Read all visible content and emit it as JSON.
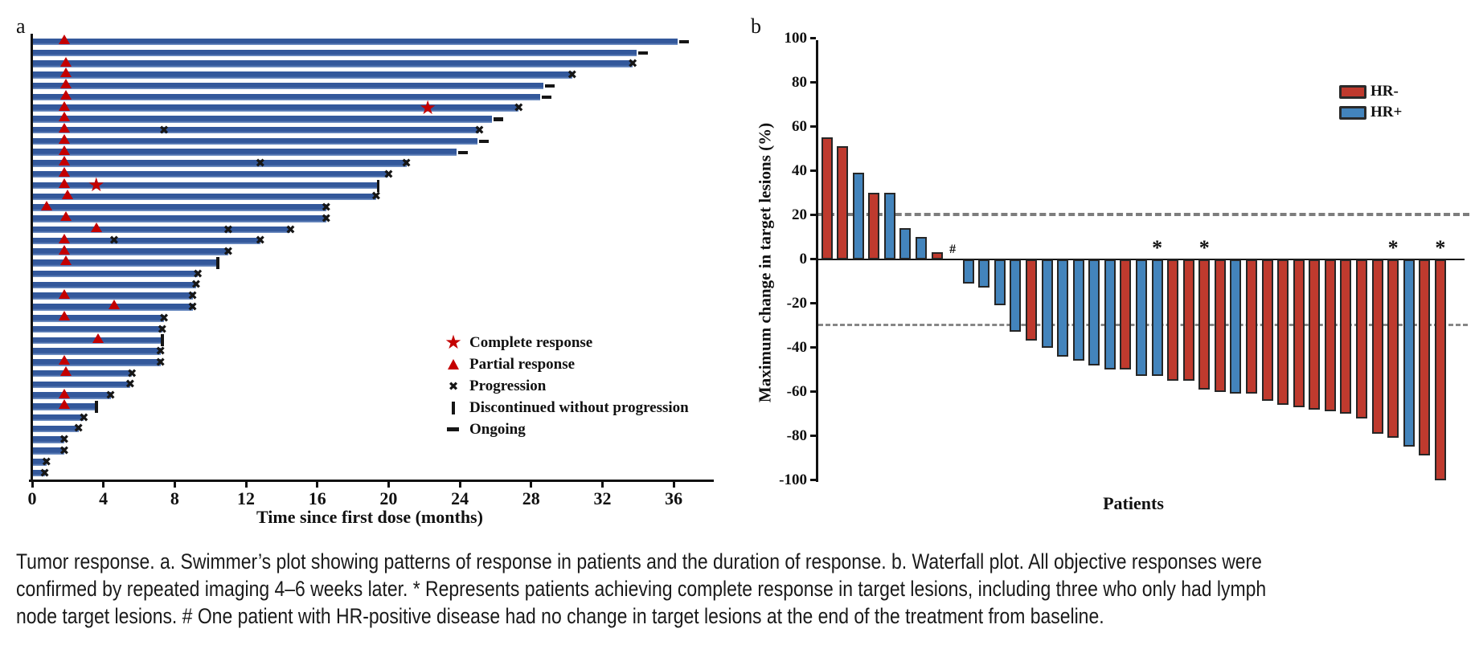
{
  "figure": {
    "panel_a": {
      "label": "a",
      "xlabel": "Time since first dose (months)",
      "x_ticks": [
        0,
        4,
        8,
        12,
        16,
        20,
        24,
        28,
        32,
        36
      ],
      "legend": [
        {
          "symbol": "star",
          "label": "Complete response"
        },
        {
          "symbol": "triangle",
          "label": "Partial response"
        },
        {
          "symbol": "x",
          "label": "Progression"
        },
        {
          "symbol": "vertical-bar",
          "label": "Discontinued without progression"
        },
        {
          "symbol": "dash",
          "label": "Ongoing"
        }
      ]
    },
    "panel_b": {
      "label": "b",
      "ylabel": "Maximum change in target lesions (%)",
      "xlabel": "Patients",
      "y_ticks": [
        100,
        80,
        60,
        40,
        20,
        0,
        -20,
        -40,
        -60,
        -80,
        -100
      ],
      "reference_lines": [
        20,
        -30
      ],
      "legend": [
        {
          "group": "HR-",
          "label": "HR-"
        },
        {
          "group": "HR+",
          "label": "HR+"
        }
      ]
    }
  },
  "chart_data": [
    {
      "type": "bar",
      "name": "swimmer-plot",
      "orientation": "horizontal",
      "xlabel": "Time since first dose (months)",
      "xlim": [
        0,
        38
      ],
      "x_ticks": [
        0,
        4,
        8,
        12,
        16,
        20,
        24,
        28,
        32,
        36
      ],
      "marker_meanings": {
        "star": "Complete response",
        "triangle": "Partial response",
        "x": "Progression",
        "discontinued": "Discontinued without progression",
        "ongoing": "Ongoing"
      },
      "patients": [
        {
          "months": 36.2,
          "end": "ongoing",
          "triangle": 1.8
        },
        {
          "months": 33.9,
          "end": "ongoing"
        },
        {
          "months": 33.7,
          "end": "progression",
          "triangle": 1.9
        },
        {
          "months": 30.3,
          "end": "progression",
          "triangle": 1.9
        },
        {
          "months": 28.7,
          "end": "ongoing",
          "triangle": 1.9
        },
        {
          "months": 28.5,
          "end": "ongoing",
          "triangle": 1.9
        },
        {
          "months": 27.3,
          "end": "progression",
          "triangle": 1.8,
          "star": 22.2
        },
        {
          "months": 25.8,
          "end": "ongoing",
          "triangle": 1.8
        },
        {
          "months": 25.1,
          "end": "progression",
          "triangle": 1.8,
          "x_marks": [
            7.4
          ]
        },
        {
          "months": 25.0,
          "end": "ongoing",
          "triangle": 1.8
        },
        {
          "months": 23.8,
          "end": "ongoing",
          "triangle": 1.8
        },
        {
          "months": 21.0,
          "end": "progression",
          "triangle": 1.8,
          "x_marks": [
            12.8
          ]
        },
        {
          "months": 20.0,
          "end": "progression",
          "triangle": 1.8
        },
        {
          "months": 19.4,
          "end": "discontinued",
          "triangle": 1.8,
          "star": 3.6
        },
        {
          "months": 19.3,
          "end": "progression",
          "triangle": 2.0
        },
        {
          "months": 16.5,
          "end": "progression",
          "triangle": 0.8
        },
        {
          "months": 16.5,
          "end": "progression",
          "triangle": 1.9
        },
        {
          "months": 14.5,
          "end": "progression",
          "triangle": 3.6,
          "x_marks": [
            11.0
          ]
        },
        {
          "months": 12.8,
          "end": "progression",
          "triangle": 1.8,
          "x_marks": [
            4.6
          ]
        },
        {
          "months": 11.0,
          "end": "progression",
          "triangle": 1.8
        },
        {
          "months": 10.4,
          "end": "discontinued",
          "triangle": 1.9
        },
        {
          "months": 9.3,
          "end": "progression"
        },
        {
          "months": 9.2,
          "end": "progression"
        },
        {
          "months": 9.0,
          "end": "progression",
          "triangle": 1.8
        },
        {
          "months": 9.0,
          "end": "progression",
          "triangle": 4.6
        },
        {
          "months": 7.4,
          "end": "progression",
          "triangle": 1.8
        },
        {
          "months": 7.3,
          "end": "progression"
        },
        {
          "months": 7.3,
          "end": "discontinued",
          "triangle": 3.7
        },
        {
          "months": 7.2,
          "end": "progression"
        },
        {
          "months": 7.2,
          "end": "progression",
          "triangle": 1.8
        },
        {
          "months": 5.6,
          "end": "progression",
          "triangle": 1.9
        },
        {
          "months": 5.5,
          "end": "progression"
        },
        {
          "months": 4.4,
          "end": "progression",
          "triangle": 1.8
        },
        {
          "months": 3.6,
          "end": "discontinued",
          "triangle": 1.8
        },
        {
          "months": 2.9,
          "end": "progression"
        },
        {
          "months": 2.6,
          "end": "progression"
        },
        {
          "months": 1.8,
          "end": "progression"
        },
        {
          "months": 1.8,
          "end": "progression"
        },
        {
          "months": 0.8,
          "end": "progression"
        },
        {
          "months": 0.7,
          "end": "progression"
        }
      ]
    },
    {
      "type": "bar",
      "name": "waterfall-plot",
      "orientation": "vertical",
      "ylabel": "Maximum change in target lesions (%)",
      "xlabel": "Patients",
      "ylim": [
        -100,
        100
      ],
      "y_ticks": [
        100,
        80,
        60,
        40,
        20,
        0,
        -20,
        -40,
        -60,
        -80,
        -100
      ],
      "reference_lines": [
        20,
        -30
      ],
      "legend": [
        "HR-",
        "HR+"
      ],
      "patients": [
        {
          "change": 55,
          "group": "HR-"
        },
        {
          "change": 51,
          "group": "HR-"
        },
        {
          "change": 39,
          "group": "HR+"
        },
        {
          "change": 30,
          "group": "HR-"
        },
        {
          "change": 30,
          "group": "HR+"
        },
        {
          "change": 14,
          "group": "HR+"
        },
        {
          "change": 10,
          "group": "HR+"
        },
        {
          "change": 3,
          "group": "HR-"
        },
        {
          "change": 0,
          "group": "HR+",
          "mark": "#"
        },
        {
          "change": -11,
          "group": "HR+"
        },
        {
          "change": -13,
          "group": "HR+"
        },
        {
          "change": -21,
          "group": "HR+"
        },
        {
          "change": -33,
          "group": "HR+"
        },
        {
          "change": -37,
          "group": "HR-"
        },
        {
          "change": -40,
          "group": "HR+"
        },
        {
          "change": -44,
          "group": "HR+"
        },
        {
          "change": -46,
          "group": "HR+"
        },
        {
          "change": -48,
          "group": "HR+"
        },
        {
          "change": -50,
          "group": "HR+"
        },
        {
          "change": -50,
          "group": "HR-"
        },
        {
          "change": -53,
          "group": "HR+"
        },
        {
          "change": -53,
          "group": "HR+",
          "mark": "*"
        },
        {
          "change": -55,
          "group": "HR-"
        },
        {
          "change": -55,
          "group": "HR-"
        },
        {
          "change": -59,
          "group": "HR-",
          "mark": "*"
        },
        {
          "change": -60,
          "group": "HR-"
        },
        {
          "change": -61,
          "group": "HR+"
        },
        {
          "change": -61,
          "group": "HR-"
        },
        {
          "change": -64,
          "group": "HR-"
        },
        {
          "change": -66,
          "group": "HR-"
        },
        {
          "change": -67,
          "group": "HR-"
        },
        {
          "change": -68,
          "group": "HR-"
        },
        {
          "change": -69,
          "group": "HR-"
        },
        {
          "change": -70,
          "group": "HR-"
        },
        {
          "change": -72,
          "group": "HR-"
        },
        {
          "change": -79,
          "group": "HR-"
        },
        {
          "change": -81,
          "group": "HR-",
          "mark": "*"
        },
        {
          "change": -85,
          "group": "HR+"
        },
        {
          "change": -89,
          "group": "HR-"
        },
        {
          "change": -100,
          "group": "HR-",
          "mark": "*"
        }
      ]
    }
  ],
  "caption": {
    "lines": [
      "Tumor response. a. Swimmer’s plot showing patterns of response in patients and the duration of response. b. Waterfall plot. All objective responses were",
      "confirmed by repeated imaging 4–6 weeks later. * Represents patients achieving complete response in target lesions, including three who only had lymph",
      "node target lesions. # One patient with HR-positive disease had no change in target lesions at the end of the treatment from baseline."
    ]
  },
  "colors": {
    "swimmer_bar": "#33589b",
    "swimmer_bar_light": "#7e9ccb",
    "hr_negative": "#bf3a2e",
    "hr_positive": "#4384bc",
    "marker_red": "#c40000",
    "marker_black": "#161616",
    "dashed_line": "#7d7d7d",
    "axis": "#111111"
  }
}
